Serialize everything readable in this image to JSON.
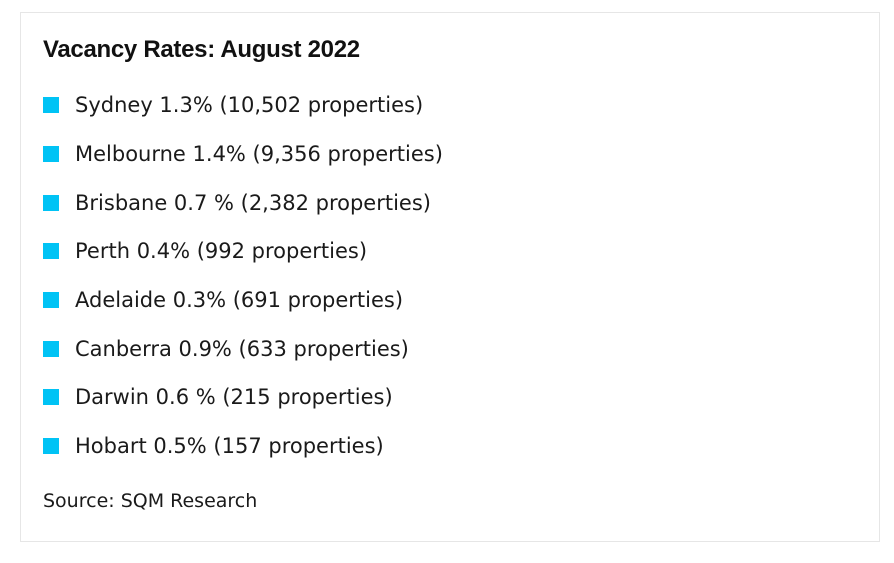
{
  "title": "Vacancy Rates: August 2022",
  "bullet_color": "#00c3f5",
  "items": [
    {
      "text": "Sydney 1.3% (10,502 properties)"
    },
    {
      "text": "Melbourne 1.4% (9,356 properties)"
    },
    {
      "text": "Brisbane 0.7 % (2,382 properties)"
    },
    {
      "text": "Perth 0.4% (992 properties)"
    },
    {
      "text": "Adelaide 0.3% (691 properties)"
    },
    {
      "text": "Canberra 0.9% (633 properties)"
    },
    {
      "text": "Darwin 0.6 % (215 properties)"
    },
    {
      "text": "Hobart 0.5% (157 properties)"
    }
  ],
  "source": "Source: SQM Research"
}
